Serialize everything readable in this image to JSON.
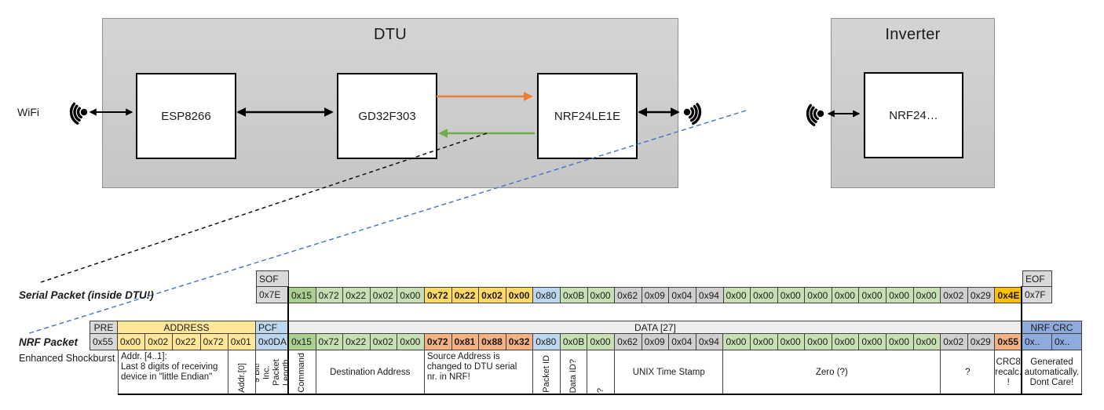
{
  "diagram": {
    "wifi_label": "WiFi",
    "dtu": {
      "title": "DTU",
      "chips": [
        {
          "label": "ESP8266"
        },
        {
          "label": "GD32F303"
        },
        {
          "label": "NRF24LE1E"
        }
      ]
    },
    "inverter": {
      "title": "Inverter",
      "chip": "NRF24…"
    },
    "colors": {
      "orange_arrow": "#ED7D31",
      "green_arrow": "#70AD47",
      "blue_dashed_line": "#4472C4",
      "black_dashed_line": "#000000"
    }
  },
  "serial_packet": {
    "label": "Serial Packet (inside DTU!)",
    "sof_header": "SOF",
    "sof_value": "0x7E",
    "eof_header": "EOF",
    "eof_value": "0x7F",
    "bytes": [
      {
        "v": "0x15",
        "c": "gdark"
      },
      {
        "v": "0x72",
        "c": "glight"
      },
      {
        "v": "0x22",
        "c": "glight"
      },
      {
        "v": "0x02",
        "c": "glight"
      },
      {
        "v": "0x00",
        "c": "glight"
      },
      {
        "v": "0x72",
        "c": "yellow",
        "b": 1
      },
      {
        "v": "0x22",
        "c": "yellow",
        "b": 1
      },
      {
        "v": "0x02",
        "c": "yellow",
        "b": 1
      },
      {
        "v": "0x00",
        "c": "yellow",
        "b": 1
      },
      {
        "v": "0x80",
        "c": "blue"
      },
      {
        "v": "0x0B",
        "c": "glight"
      },
      {
        "v": "0x00",
        "c": "glight"
      },
      {
        "v": "0x62",
        "c": "gray"
      },
      {
        "v": "0x09",
        "c": "gray"
      },
      {
        "v": "0x04",
        "c": "gray"
      },
      {
        "v": "0x94",
        "c": "gray"
      },
      {
        "v": "0x00",
        "c": "glight"
      },
      {
        "v": "0x00",
        "c": "glight"
      },
      {
        "v": "0x00",
        "c": "glight"
      },
      {
        "v": "0x00",
        "c": "glight"
      },
      {
        "v": "0x00",
        "c": "glight"
      },
      {
        "v": "0x00",
        "c": "glight"
      },
      {
        "v": "0x00",
        "c": "glight"
      },
      {
        "v": "0x00",
        "c": "glight"
      },
      {
        "v": "0x02",
        "c": "gray"
      },
      {
        "v": "0x29",
        "c": "gray"
      },
      {
        "v": "0x4E",
        "c": "gold",
        "b": 1
      }
    ]
  },
  "nrf_packet": {
    "label": "NRF Packet",
    "sublabel": "Enhanced Shockburst",
    "pre_header": "PRE",
    "pre_value": "0x55",
    "address_header": "ADDRESS",
    "address_values": [
      "0x00",
      "0x02",
      "0x22",
      "0x72",
      "0x01"
    ],
    "pcf_header": "PCF",
    "pcf_value": "0x0DA",
    "data_header": "DATA [27]",
    "crc_header": "NRF CRC",
    "crc_values": [
      "0x..",
      "0x.."
    ],
    "bytes": [
      {
        "v": "0x15",
        "c": "gdark"
      },
      {
        "v": "0x72",
        "c": "glight"
      },
      {
        "v": "0x22",
        "c": "glight"
      },
      {
        "v": "0x02",
        "c": "glight"
      },
      {
        "v": "0x00",
        "c": "glight"
      },
      {
        "v": "0x72",
        "c": "salmon",
        "b": 1
      },
      {
        "v": "0x81",
        "c": "salmon",
        "b": 1
      },
      {
        "v": "0x88",
        "c": "salmon",
        "b": 1
      },
      {
        "v": "0x32",
        "c": "salmon",
        "b": 1
      },
      {
        "v": "0x80",
        "c": "blue"
      },
      {
        "v": "0x0B",
        "c": "glight"
      },
      {
        "v": "0x00",
        "c": "glight"
      },
      {
        "v": "0x62",
        "c": "gray"
      },
      {
        "v": "0x09",
        "c": "gray"
      },
      {
        "v": "0x04",
        "c": "gray"
      },
      {
        "v": "0x94",
        "c": "gray"
      },
      {
        "v": "0x00",
        "c": "glight"
      },
      {
        "v": "0x00",
        "c": "glight"
      },
      {
        "v": "0x00",
        "c": "glight"
      },
      {
        "v": "0x00",
        "c": "glight"
      },
      {
        "v": "0x00",
        "c": "glight"
      },
      {
        "v": "0x00",
        "c": "glight"
      },
      {
        "v": "0x00",
        "c": "glight"
      },
      {
        "v": "0x00",
        "c": "glight"
      },
      {
        "v": "0x02",
        "c": "gray"
      },
      {
        "v": "0x29",
        "c": "gray"
      },
      {
        "v": "0x55",
        "c": "salmon",
        "b": 1
      }
    ]
  },
  "annotations": [
    {
      "text": "Addr. [4..1]:\nLast 8 digits of receiving\ndevice in \"little Endian\"",
      "span": 4,
      "style": "left"
    },
    {
      "text": "Addr.[0]",
      "span": 1,
      "style": "vert"
    },
    {
      "text": "9 Bit!\nInc. Packet\nLength",
      "span": 1,
      "style": "vert"
    },
    {
      "text": "Command",
      "span": 1,
      "style": "vert"
    },
    {
      "text": "Destination Address",
      "span": 4,
      "style": "center"
    },
    {
      "text": "Source Address is\nchanged to DTU serial\nnr. in NRF!",
      "span": 4,
      "style": "left salmon"
    },
    {
      "text": "Packet ID",
      "span": 1,
      "style": "vert"
    },
    {
      "text": "Data ID?",
      "span": 1,
      "style": "vert"
    },
    {
      "text": "?",
      "span": 1,
      "style": "vert"
    },
    {
      "text": "UNIX Time Stamp",
      "span": 4,
      "style": "center"
    },
    {
      "text": "Zero (?)",
      "span": 8,
      "style": "center"
    },
    {
      "text": "?",
      "span": 2,
      "style": "center"
    },
    {
      "text": "CRC8\nrecalc.\n!",
      "span": 1,
      "style": "center salmon"
    },
    {
      "text": "Generated\nautomatically.\nDont Care!",
      "span": 2,
      "style": "center"
    }
  ]
}
